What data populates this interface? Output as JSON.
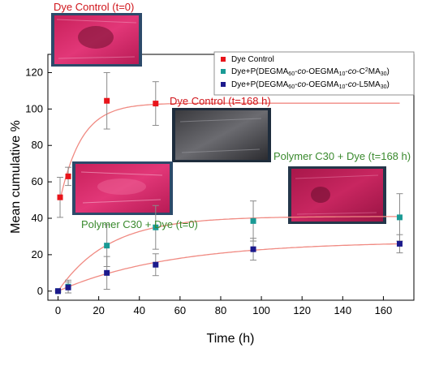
{
  "chart_data": {
    "type": "scatter",
    "xlabel": "Time (h)",
    "ylabel": "Mean cumulative %",
    "xlim": [
      -5,
      175
    ],
    "ylim": [
      -5,
      130
    ],
    "xticks": [
      0,
      20,
      40,
      60,
      80,
      100,
      120,
      140,
      160
    ],
    "yticks": [
      0,
      20,
      40,
      60,
      80,
      100,
      120
    ],
    "grid": false,
    "legend_position": "top-right",
    "series": [
      {
        "name": "Dye Control",
        "color": "#e8141a",
        "marker": "square",
        "x": [
          1,
          5,
          24,
          48
        ],
        "y": [
          51.5,
          63,
          104.5,
          103
        ],
        "err": [
          11,
          5,
          15.5,
          12
        ]
      },
      {
        "name": "Dye+P(DEGMA60-co-OEGMA10-co-C²MA30)",
        "color": "#1a9a95",
        "marker": "square",
        "x": [
          0,
          5,
          24,
          48,
          96,
          168
        ],
        "y": [
          0,
          2.5,
          25,
          35,
          38.5,
          40.5
        ],
        "err": [
          0.5,
          3.5,
          11.5,
          12,
          11,
          13
        ]
      },
      {
        "name": "Dye+P(DEGMA60-co-OEGMA10-co-L5MA30)",
        "color": "#1c1a8c",
        "marker": "square",
        "x": [
          0,
          5,
          24,
          48,
          96,
          168
        ],
        "y": [
          0,
          2,
          10,
          14.5,
          23,
          26
        ],
        "err": [
          0.5,
          3,
          9,
          6,
          6,
          5
        ]
      }
    ],
    "fits": [
      {
        "color": "#f08a82",
        "a": 103.2,
        "k": 0.095,
        "y0": 50,
        "x0": 1
      },
      {
        "color": "#f08a82",
        "a": 41,
        "k": 0.04,
        "y0": 0,
        "x0": 0
      },
      {
        "color": "#f08a82",
        "a": 27.3,
        "k": 0.018,
        "y0": 0,
        "x0": 0
      }
    ],
    "annotations": [
      {
        "text": "Dye Control (t=0)",
        "color": "#d0151b"
      },
      {
        "text": "Dye Control (t=168 h)",
        "color": "#d0151b"
      },
      {
        "text": "Polymer C30 + Dye (t=168 h)",
        "color": "#3a8a2e"
      },
      {
        "text": "Polymer C30 + Dye (t=0)",
        "color": "#3a8a2e"
      }
    ]
  },
  "legend": {
    "dye_control": "Dye Control",
    "c2": {
      "a": "Dye+P(DEGMA",
      "s1": "60",
      "b": "-",
      "co1": "co",
      "c": "-OEGMA",
      "s2": "10",
      "d": "-",
      "co2": "co",
      "e": "-C",
      "sup": "2",
      "f": "MA",
      "s3": "30",
      "g": ")"
    },
    "l5": {
      "a": "Dye+P(DEGMA",
      "s1": "60",
      "b": "-",
      "co1": "co",
      "c": "-OEGMA",
      "s2": "10",
      "d": "-",
      "co2": "co",
      "e": "-L5MA",
      "s3": "30",
      "f": ")"
    }
  }
}
